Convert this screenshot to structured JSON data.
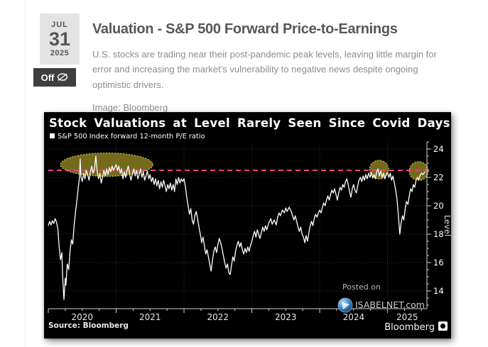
{
  "post": {
    "date": {
      "month": "JUL",
      "day": "31",
      "year": "2025"
    },
    "comments_badge": "Off",
    "title": "Valuation - S&P 500 Forward Price-to-Earnings",
    "description": "U.S. stocks are trading near their post-pandemic peak levels, leaving little margin for error and increasing the market’s vulnerability to negative news despite ongoing optimistic drivers.",
    "image_caption": "Image: Bloomberg"
  },
  "colors": {
    "chart_background": "#000000",
    "series_line": "#ffffff",
    "reference_pink": "#e8418c",
    "highlight_olive": "#8a7c21",
    "highlight_border": "#d9cc4a",
    "grid": "#2e2e2e",
    "axis": "#cfcfcf"
  },
  "chart_data": {
    "type": "line",
    "title": "Stock Valuations at Level Rarely Seen Since Covid Days",
    "legend": "S&P 500 Index forward 12-month P/E ratio",
    "ylabel": "Level",
    "source": "Source: Bloomberg",
    "brand": "Bloomberg",
    "watermark": {
      "line1": "Posted on",
      "line2": "ISABELNET.com"
    },
    "x_ticks": [
      2020,
      2021,
      2022,
      2023,
      2024,
      2025
    ],
    "y_ticks": [
      14,
      16,
      18,
      20,
      22,
      24
    ],
    "x_range": [
      2020.0,
      2025.58
    ],
    "y_range": [
      12.75,
      24.5
    ],
    "grid": true,
    "legend_position": "top-left",
    "reference_line": {
      "value": 22.5,
      "color": "#e8418c",
      "style": "dashed"
    },
    "annotations": [
      {
        "shape": "ellipse",
        "x": 2020.86,
        "y": 22.9,
        "rx_years": 0.68,
        "ry_units": 0.82,
        "fill": "#8a7c21",
        "stroke": "#d9cc4a"
      },
      {
        "shape": "ellipse",
        "x": 2024.875,
        "y": 22.55,
        "rx_years": 0.14,
        "ry_units": 0.66,
        "fill": "#8a7c21",
        "stroke": "#d9cc4a"
      },
      {
        "shape": "ellipse",
        "x": 2025.46,
        "y": 22.45,
        "rx_years": 0.14,
        "ry_units": 0.66,
        "fill": "#8a7c21",
        "stroke": "#d9cc4a"
      }
    ],
    "series": [
      {
        "name": "S&P 500 Index forward 12-month P/E ratio",
        "color": "#ffffff",
        "points": [
          [
            2020.0,
            18.6
          ],
          [
            2020.02,
            18.9
          ],
          [
            2020.04,
            18.65
          ],
          [
            2020.06,
            18.95
          ],
          [
            2020.08,
            18.75
          ],
          [
            2020.1,
            19.1
          ],
          [
            2020.12,
            18.85
          ],
          [
            2020.14,
            18.4
          ],
          [
            2020.16,
            17.1
          ],
          [
            2020.18,
            16.2
          ],
          [
            2020.2,
            16.7
          ],
          [
            2020.21,
            15.1
          ],
          [
            2020.23,
            13.4
          ],
          [
            2020.25,
            14.9
          ],
          [
            2020.26,
            14.4
          ],
          [
            2020.28,
            15.9
          ],
          [
            2020.3,
            15.5
          ],
          [
            2020.32,
            16.8
          ],
          [
            2020.34,
            17.6
          ],
          [
            2020.36,
            17.3
          ],
          [
            2020.38,
            18.6
          ],
          [
            2020.4,
            19.5
          ],
          [
            2020.42,
            20.3
          ],
          [
            2020.44,
            21.2
          ],
          [
            2020.46,
            22.0
          ],
          [
            2020.47,
            23.3
          ],
          [
            2020.48,
            22.1
          ],
          [
            2020.5,
            21.7
          ],
          [
            2020.52,
            22.3
          ],
          [
            2020.54,
            21.9
          ],
          [
            2020.56,
            22.5
          ],
          [
            2020.58,
            22.2
          ],
          [
            2020.6,
            21.8
          ],
          [
            2020.62,
            22.4
          ],
          [
            2020.64,
            22.8
          ],
          [
            2020.66,
            22.3
          ],
          [
            2020.68,
            22.6
          ],
          [
            2020.7,
            23.5
          ],
          [
            2020.72,
            22.4
          ],
          [
            2020.74,
            21.9
          ],
          [
            2020.76,
            22.3
          ],
          [
            2020.78,
            21.6
          ],
          [
            2020.8,
            22.0
          ],
          [
            2020.82,
            22.5
          ],
          [
            2020.84,
            22.1
          ],
          [
            2020.86,
            22.6
          ],
          [
            2020.88,
            22.2
          ],
          [
            2020.9,
            22.7
          ],
          [
            2020.92,
            22.4
          ],
          [
            2020.94,
            22.8
          ],
          [
            2020.96,
            22.5
          ],
          [
            2020.98,
            22.7
          ],
          [
            2021.0,
            22.9
          ],
          [
            2021.02,
            22.5
          ],
          [
            2021.04,
            22.8
          ],
          [
            2021.06,
            22.3
          ],
          [
            2021.08,
            22.6
          ],
          [
            2021.1,
            21.9
          ],
          [
            2021.12,
            22.4
          ],
          [
            2021.14,
            22.0
          ],
          [
            2021.16,
            22.5
          ],
          [
            2021.18,
            22.8
          ],
          [
            2021.2,
            22.2
          ],
          [
            2021.22,
            21.8
          ],
          [
            2021.24,
            22.3
          ],
          [
            2021.26,
            22.6
          ],
          [
            2021.28,
            22.1
          ],
          [
            2021.3,
            22.5
          ],
          [
            2021.32,
            21.9
          ],
          [
            2021.34,
            22.2
          ],
          [
            2021.36,
            22.6
          ],
          [
            2021.38,
            22.0
          ],
          [
            2021.4,
            22.4
          ],
          [
            2021.42,
            21.8
          ],
          [
            2021.44,
            22.1
          ],
          [
            2021.46,
            22.45
          ],
          [
            2021.48,
            21.9
          ],
          [
            2021.5,
            22.2
          ],
          [
            2021.52,
            21.7
          ],
          [
            2021.54,
            22.0
          ],
          [
            2021.56,
            21.5
          ],
          [
            2021.58,
            21.9
          ],
          [
            2021.6,
            21.4
          ],
          [
            2021.62,
            21.8
          ],
          [
            2021.64,
            21.2
          ],
          [
            2021.66,
            21.7
          ],
          [
            2021.68,
            21.3
          ],
          [
            2021.7,
            21.8
          ],
          [
            2021.72,
            21.4
          ],
          [
            2021.74,
            21.0
          ],
          [
            2021.76,
            21.5
          ],
          [
            2021.78,
            21.2
          ],
          [
            2021.8,
            21.6
          ],
          [
            2021.82,
            21.1
          ],
          [
            2021.84,
            21.5
          ],
          [
            2021.86,
            21.0
          ],
          [
            2021.88,
            21.9
          ],
          [
            2021.9,
            21.5
          ],
          [
            2021.92,
            22.0
          ],
          [
            2021.94,
            21.6
          ],
          [
            2021.96,
            21.9
          ],
          [
            2021.98,
            21.7
          ],
          [
            2022.0,
            21.9
          ],
          [
            2022.02,
            21.4
          ],
          [
            2022.04,
            20.6
          ],
          [
            2022.06,
            20.0
          ],
          [
            2022.08,
            19.4
          ],
          [
            2022.1,
            19.8
          ],
          [
            2022.12,
            19.0
          ],
          [
            2022.14,
            18.7
          ],
          [
            2022.16,
            19.3
          ],
          [
            2022.18,
            19.6
          ],
          [
            2022.2,
            19.1
          ],
          [
            2022.22,
            18.5
          ],
          [
            2022.24,
            18.0
          ],
          [
            2022.26,
            17.4
          ],
          [
            2022.28,
            17.8
          ],
          [
            2022.3,
            17.2
          ],
          [
            2022.32,
            16.6
          ],
          [
            2022.34,
            16.9
          ],
          [
            2022.36,
            16.4
          ],
          [
            2022.38,
            15.9
          ],
          [
            2022.4,
            15.4
          ],
          [
            2022.42,
            16.2
          ],
          [
            2022.44,
            16.8
          ],
          [
            2022.46,
            17.1
          ],
          [
            2022.48,
            16.7
          ],
          [
            2022.5,
            17.3
          ],
          [
            2022.52,
            17.7
          ],
          [
            2022.54,
            17.4
          ],
          [
            2022.56,
            17.0
          ],
          [
            2022.58,
            16.5
          ],
          [
            2022.6,
            16.0
          ],
          [
            2022.62,
            15.6
          ],
          [
            2022.64,
            15.9
          ],
          [
            2022.66,
            15.3
          ],
          [
            2022.68,
            15.15
          ],
          [
            2022.7,
            15.8
          ],
          [
            2022.72,
            16.4
          ],
          [
            2022.74,
            16.1
          ],
          [
            2022.76,
            16.8
          ],
          [
            2022.78,
            17.2
          ],
          [
            2022.8,
            17.5
          ],
          [
            2022.82,
            17.1
          ],
          [
            2022.84,
            17.4
          ],
          [
            2022.86,
            16.9
          ],
          [
            2022.88,
            16.6
          ],
          [
            2022.9,
            17.0
          ],
          [
            2022.92,
            16.7
          ],
          [
            2022.94,
            17.1
          ],
          [
            2022.96,
            16.8
          ],
          [
            2022.98,
            17.2
          ],
          [
            2023.0,
            17.5
          ],
          [
            2023.02,
            17.9
          ],
          [
            2023.04,
            18.2
          ],
          [
            2023.06,
            17.8
          ],
          [
            2023.08,
            18.3
          ],
          [
            2023.1,
            18.0
          ],
          [
            2023.12,
            17.7
          ],
          [
            2023.14,
            18.1
          ],
          [
            2023.16,
            18.5
          ],
          [
            2023.18,
            18.2
          ],
          [
            2023.2,
            18.6
          ],
          [
            2023.22,
            18.3
          ],
          [
            2023.25,
            18.8
          ],
          [
            2023.28,
            19.1
          ],
          [
            2023.3,
            18.7
          ],
          [
            2023.33,
            19.0
          ],
          [
            2023.36,
            18.65
          ],
          [
            2023.38,
            19.2
          ],
          [
            2023.4,
            19.5
          ],
          [
            2023.42,
            19.3
          ],
          [
            2023.45,
            19.7
          ],
          [
            2023.48,
            19.5
          ],
          [
            2023.5,
            19.85
          ],
          [
            2023.52,
            19.6
          ],
          [
            2023.55,
            19.9
          ],
          [
            2023.58,
            19.6
          ],
          [
            2023.6,
            19.3
          ],
          [
            2023.62,
            19.0
          ],
          [
            2023.64,
            19.3
          ],
          [
            2023.66,
            18.9
          ],
          [
            2023.68,
            18.5
          ],
          [
            2023.7,
            18.2
          ],
          [
            2023.72,
            18.5
          ],
          [
            2023.74,
            18.0
          ],
          [
            2023.76,
            17.8
          ],
          [
            2023.78,
            17.4
          ],
          [
            2023.8,
            17.9
          ],
          [
            2023.82,
            17.5
          ],
          [
            2023.84,
            18.1
          ],
          [
            2023.86,
            18.6
          ],
          [
            2023.88,
            18.9
          ],
          [
            2023.9,
            18.6
          ],
          [
            2023.92,
            19.1
          ],
          [
            2023.94,
            19.4
          ],
          [
            2023.96,
            19.2
          ],
          [
            2023.98,
            19.5
          ],
          [
            2024.0,
            19.7
          ],
          [
            2024.02,
            19.5
          ],
          [
            2024.04,
            19.9
          ],
          [
            2024.06,
            20.2
          ],
          [
            2024.08,
            20.0
          ],
          [
            2024.1,
            20.4
          ],
          [
            2024.12,
            20.7
          ],
          [
            2024.14,
            20.4
          ],
          [
            2024.16,
            20.8
          ],
          [
            2024.18,
            21.1
          ],
          [
            2024.2,
            20.9
          ],
          [
            2024.22,
            21.2
          ],
          [
            2024.24,
            20.8
          ],
          [
            2024.26,
            20.4
          ],
          [
            2024.28,
            20.9
          ],
          [
            2024.3,
            21.3
          ],
          [
            2024.32,
            21.1
          ],
          [
            2024.34,
            21.5
          ],
          [
            2024.36,
            21.3
          ],
          [
            2024.38,
            21.7
          ],
          [
            2024.4,
            21.9
          ],
          [
            2024.42,
            21.5
          ],
          [
            2024.44,
            21.0
          ],
          [
            2024.46,
            20.6
          ],
          [
            2024.48,
            21.2
          ],
          [
            2024.5,
            21.5
          ],
          [
            2024.52,
            21.1
          ],
          [
            2024.54,
            20.9
          ],
          [
            2024.56,
            21.4
          ],
          [
            2024.58,
            21.8
          ],
          [
            2024.6,
            22.0
          ],
          [
            2024.62,
            21.7
          ],
          [
            2024.64,
            22.1
          ],
          [
            2024.66,
            21.8
          ],
          [
            2024.68,
            22.2
          ],
          [
            2024.7,
            21.9
          ],
          [
            2024.72,
            22.3
          ],
          [
            2024.74,
            22.0
          ],
          [
            2024.76,
            22.35
          ],
          [
            2024.78,
            21.95
          ],
          [
            2024.8,
            22.2
          ],
          [
            2024.82,
            21.9
          ],
          [
            2024.84,
            22.4
          ],
          [
            2024.86,
            22.6
          ],
          [
            2024.88,
            22.1
          ],
          [
            2024.9,
            22.45
          ],
          [
            2024.92,
            22.0
          ],
          [
            2024.94,
            22.3
          ],
          [
            2024.96,
            21.9
          ],
          [
            2024.98,
            22.2
          ],
          [
            2025.0,
            22.35
          ],
          [
            2025.02,
            22.0
          ],
          [
            2025.04,
            22.3
          ],
          [
            2025.06,
            21.8
          ],
          [
            2025.08,
            22.1
          ],
          [
            2025.1,
            21.6
          ],
          [
            2025.12,
            21.1
          ],
          [
            2025.14,
            20.4
          ],
          [
            2025.16,
            19.3
          ],
          [
            2025.18,
            18.0
          ],
          [
            2025.2,
            18.8
          ],
          [
            2025.22,
            19.3
          ],
          [
            2025.24,
            19.0
          ],
          [
            2025.26,
            19.8
          ],
          [
            2025.28,
            20.3
          ],
          [
            2025.3,
            20.1
          ],
          [
            2025.32,
            20.7
          ],
          [
            2025.34,
            21.2
          ],
          [
            2025.36,
            21.0
          ],
          [
            2025.38,
            21.5
          ],
          [
            2025.4,
            21.3
          ],
          [
            2025.42,
            21.8
          ],
          [
            2025.44,
            22.0
          ],
          [
            2025.46,
            21.85
          ],
          [
            2025.48,
            22.15
          ],
          [
            2025.5,
            22.3
          ],
          [
            2025.52,
            22.2
          ],
          [
            2025.55,
            22.4
          ]
        ]
      }
    ]
  }
}
